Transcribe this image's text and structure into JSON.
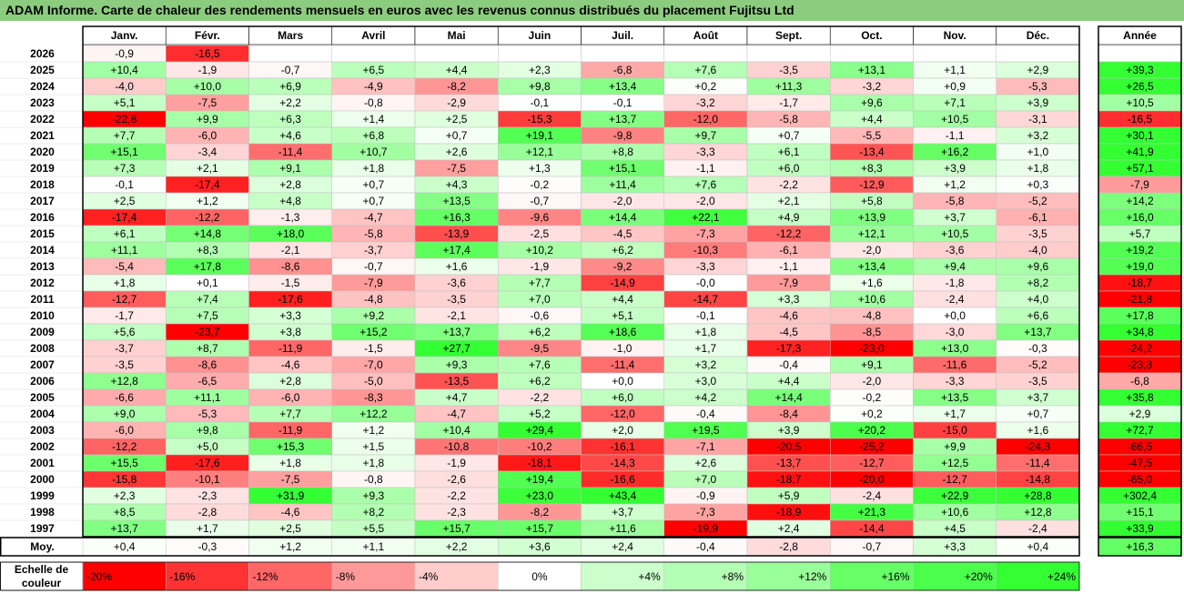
{
  "title": "ADAM Informe. Carte de chaleur des rendements mensuels en euros avec les revenus connus distribués du placement Fujitsu Ltd",
  "chart_data": {
    "type": "heatmap",
    "months": [
      "Janv.",
      "Févr.",
      "Mars",
      "Avril",
      "Mai",
      "Juin",
      "Juil.",
      "Août",
      "Sept.",
      "Oct.",
      "Nov.",
      "Déc."
    ],
    "annual_header": "Année",
    "rows": [
      {
        "year": "2026",
        "values": [
          -0.9,
          -16.5,
          null,
          null,
          null,
          null,
          null,
          null,
          null,
          null,
          null,
          null
        ],
        "labels": [
          "-0,9",
          "-16,5",
          "",
          "",
          "",
          "",
          "",
          "",
          "",
          "",
          "",
          ""
        ],
        "annual": null,
        "annual_label": ""
      },
      {
        "year": "2025",
        "values": [
          10.4,
          -1.9,
          -0.7,
          6.5,
          4.4,
          2.3,
          -6.8,
          7.6,
          -3.5,
          13.1,
          1.1,
          2.9
        ],
        "labels": [
          "+10,4",
          "-1,9",
          "-0,7",
          "+6,5",
          "+4,4",
          "+2,3",
          "-6,8",
          "+7,6",
          "-3,5",
          "+13,1",
          "+1,1",
          "+2,9"
        ],
        "annual": 39.3,
        "annual_label": "+39,3"
      },
      {
        "year": "2024",
        "values": [
          -4.0,
          10.0,
          6.9,
          -4.9,
          -8.2,
          9.8,
          13.4,
          0.2,
          11.3,
          -3.2,
          0.9,
          -5.3
        ],
        "labels": [
          "-4,0",
          "+10,0",
          "+6,9",
          "-4,9",
          "-8,2",
          "+9,8",
          "+13,4",
          "+0,2",
          "+11,3",
          "-3,2",
          "+0,9",
          "-5,3"
        ],
        "annual": 26.5,
        "annual_label": "+26,5"
      },
      {
        "year": "2023",
        "values": [
          5.1,
          -7.5,
          2.2,
          -0.8,
          -2.9,
          -0.1,
          -0.1,
          -3.2,
          -1.7,
          9.6,
          7.1,
          3.9
        ],
        "labels": [
          "+5,1",
          "-7,5",
          "+2,2",
          "-0,8",
          "-2,9",
          "-0,1",
          "-0,1",
          "-3,2",
          "-1,7",
          "+9,6",
          "+7,1",
          "+3,9"
        ],
        "annual": 10.5,
        "annual_label": "+10,5"
      },
      {
        "year": "2022",
        "values": [
          -22.8,
          9.9,
          6.3,
          1.4,
          2.5,
          -15.3,
          13.7,
          -12.0,
          -5.8,
          4.4,
          10.5,
          -3.1
        ],
        "labels": [
          "-22,8",
          "+9,9",
          "+6,3",
          "+1,4",
          "+2,5",
          "-15,3",
          "+13,7",
          "-12,0",
          "-5,8",
          "+4,4",
          "+10,5",
          "-3,1"
        ],
        "annual": -16.5,
        "annual_label": "-16,5"
      },
      {
        "year": "2021",
        "values": [
          7.7,
          -6.0,
          4.6,
          6.8,
          0.7,
          19.1,
          -9.8,
          9.7,
          0.7,
          -5.5,
          -1.1,
          3.2
        ],
        "labels": [
          "+7,7",
          "-6,0",
          "+4,6",
          "+6,8",
          "+0,7",
          "+19,1",
          "-9,8",
          "+9,7",
          "+0,7",
          "-5,5",
          "-1,1",
          "+3,2"
        ],
        "annual": 30.1,
        "annual_label": "+30,1"
      },
      {
        "year": "2020",
        "values": [
          15.1,
          -3.4,
          -11.4,
          10.7,
          2.6,
          12.1,
          8.8,
          -3.3,
          6.1,
          -13.4,
          16.2,
          1.0
        ],
        "labels": [
          "+15,1",
          "-3,4",
          "-11,4",
          "+10,7",
          "+2,6",
          "+12,1",
          "+8,8",
          "-3,3",
          "+6,1",
          "-13,4",
          "+16,2",
          "+1,0"
        ],
        "annual": 41.9,
        "annual_label": "+41,9"
      },
      {
        "year": "2019",
        "values": [
          7.3,
          2.1,
          9.1,
          1.8,
          -7.5,
          1.3,
          15.1,
          -1.1,
          6.0,
          8.3,
          3.9,
          1.8
        ],
        "labels": [
          "+7,3",
          "+2,1",
          "+9,1",
          "+1,8",
          "-7,5",
          "+1,3",
          "+15,1",
          "-1,1",
          "+6,0",
          "+8,3",
          "+3,9",
          "+1,8"
        ],
        "annual": 57.1,
        "annual_label": "+57,1"
      },
      {
        "year": "2018",
        "values": [
          -0.1,
          -17.4,
          2.8,
          0.7,
          4.3,
          -0.2,
          11.4,
          7.6,
          -2.2,
          -12.9,
          1.2,
          0.3
        ],
        "labels": [
          "-0,1",
          "-17,4",
          "+2,8",
          "+0,7",
          "+4,3",
          "-0,2",
          "+11,4",
          "+7,6",
          "-2,2",
          "-12,9",
          "+1,2",
          "+0,3"
        ],
        "annual": -7.9,
        "annual_label": "-7,9"
      },
      {
        "year": "2017",
        "values": [
          2.5,
          1.2,
          4.8,
          0.7,
          13.5,
          -0.7,
          -2.0,
          -2.0,
          2.1,
          5.8,
          -5.8,
          -5.2
        ],
        "labels": [
          "+2,5",
          "+1,2",
          "+4,8",
          "+0,7",
          "+13,5",
          "-0,7",
          "-2,0",
          "-2,0",
          "+2,1",
          "+5,8",
          "-5,8",
          "-5,2"
        ],
        "annual": 14.2,
        "annual_label": "+14,2"
      },
      {
        "year": "2016",
        "values": [
          -17.4,
          -12.2,
          -1.3,
          -4.7,
          16.3,
          -9.6,
          14.4,
          22.1,
          4.9,
          13.9,
          3.7,
          -6.1
        ],
        "labels": [
          "-17,4",
          "-12,2",
          "-1,3",
          "-4,7",
          "+16,3",
          "-9,6",
          "+14,4",
          "+22,1",
          "+4,9",
          "+13,9",
          "+3,7",
          "-6,1"
        ],
        "annual": 16.0,
        "annual_label": "+16,0"
      },
      {
        "year": "2015",
        "values": [
          6.1,
          14.8,
          18.0,
          -5.8,
          -13.9,
          -2.5,
          -4.5,
          -7.3,
          -12.2,
          12.1,
          10.5,
          -3.5
        ],
        "labels": [
          "+6,1",
          "+14,8",
          "+18,0",
          "-5,8",
          "-13,9",
          "-2,5",
          "-4,5",
          "-7,3",
          "-12,2",
          "+12,1",
          "+10,5",
          "-3,5"
        ],
        "annual": 5.7,
        "annual_label": "+5,7"
      },
      {
        "year": "2014",
        "values": [
          11.1,
          8.3,
          -2.1,
          -3.7,
          17.4,
          10.2,
          6.2,
          -10.3,
          -6.1,
          -2.0,
          -3.6,
          -4.0
        ],
        "labels": [
          "+11,1",
          "+8,3",
          "-2,1",
          "-3,7",
          "+17,4",
          "+10,2",
          "+6,2",
          "-10,3",
          "-6,1",
          "-2,0",
          "-3,6",
          "-4,0"
        ],
        "annual": 19.2,
        "annual_label": "+19,2"
      },
      {
        "year": "2013",
        "values": [
          -5.4,
          17.8,
          -8.6,
          -0.7,
          1.6,
          -1.9,
          -9.2,
          -3.3,
          -1.1,
          13.4,
          9.4,
          9.6
        ],
        "labels": [
          "-5,4",
          "+17,8",
          "-8,6",
          "-0,7",
          "+1,6",
          "-1,9",
          "-9,2",
          "-3,3",
          "-1,1",
          "+13,4",
          "+9,4",
          "+9,6"
        ],
        "annual": 19.0,
        "annual_label": "+19,0"
      },
      {
        "year": "2012",
        "values": [
          1.8,
          0.1,
          -1.5,
          -7.9,
          -3.6,
          7.7,
          -14.9,
          -0.0,
          -7.9,
          1.6,
          -1.8,
          8.2
        ],
        "labels": [
          "+1,8",
          "+0,1",
          "-1,5",
          "-7,9",
          "-3,6",
          "+7,7",
          "-14,9",
          "-0,0",
          "-7,9",
          "+1,6",
          "-1,8",
          "+8,2"
        ],
        "annual": -18.7,
        "annual_label": "-18,7"
      },
      {
        "year": "2011",
        "values": [
          -12.7,
          7.4,
          -17.6,
          -4.8,
          -3.5,
          7.0,
          4.4,
          -14.7,
          3.3,
          10.6,
          -2.4,
          4.0
        ],
        "labels": [
          "-12,7",
          "+7,4",
          "-17,6",
          "-4,8",
          "-3,5",
          "+7,0",
          "+4,4",
          "-14,7",
          "+3,3",
          "+10,6",
          "-2,4",
          "+4,0"
        ],
        "annual": -21.8,
        "annual_label": "-21,8"
      },
      {
        "year": "2010",
        "values": [
          -1.7,
          7.5,
          3.3,
          9.2,
          -2.1,
          -0.6,
          5.1,
          -0.1,
          -4.6,
          -4.8,
          0.0,
          6.6
        ],
        "labels": [
          "-1,7",
          "+7,5",
          "+3,3",
          "+9,2",
          "-2,1",
          "-0,6",
          "+5,1",
          "-0,1",
          "-4,6",
          "-4,8",
          "+0,0",
          "+6,6"
        ],
        "annual": 17.8,
        "annual_label": "+17,8"
      },
      {
        "year": "2009",
        "values": [
          5.6,
          -23.7,
          3.8,
          15.2,
          13.7,
          6.2,
          18.6,
          1.8,
          -4.5,
          -8.5,
          -3.0,
          13.7
        ],
        "labels": [
          "+5,6",
          "-23,7",
          "+3,8",
          "+15,2",
          "+13,7",
          "+6,2",
          "+18,6",
          "+1,8",
          "-4,5",
          "-8,5",
          "-3,0",
          "+13,7"
        ],
        "annual": 34.8,
        "annual_label": "+34,8"
      },
      {
        "year": "2008",
        "values": [
          -3.7,
          8.7,
          -11.9,
          -1.5,
          27.7,
          -9.5,
          -1.0,
          1.7,
          -17.3,
          -23.0,
          13.0,
          -0.3
        ],
        "labels": [
          "-3,7",
          "+8,7",
          "-11,9",
          "-1,5",
          "+27,7",
          "-9,5",
          "-1,0",
          "+1,7",
          "-17,3",
          "-23,0",
          "+13,0",
          "-0,3"
        ],
        "annual": -24.2,
        "annual_label": "-24,2"
      },
      {
        "year": "2007",
        "values": [
          -3.5,
          -8.6,
          -4.6,
          -7.0,
          9.3,
          7.6,
          -11.4,
          3.2,
          -0.4,
          9.1,
          -11.6,
          -5.2
        ],
        "labels": [
          "-3,5",
          "-8,6",
          "-4,6",
          "-7,0",
          "+9,3",
          "+7,6",
          "-11,4",
          "+3,2",
          "-0,4",
          "+9,1",
          "-11,6",
          "-5,2"
        ],
        "annual": -23.3,
        "annual_label": "-23,3"
      },
      {
        "year": "2006",
        "values": [
          12.8,
          -6.5,
          2.8,
          -5.0,
          -13.5,
          6.2,
          0.0,
          3.0,
          4.4,
          -2.0,
          -3.3,
          -3.5
        ],
        "labels": [
          "+12,8",
          "-6,5",
          "+2,8",
          "-5,0",
          "-13,5",
          "+6,2",
          "+0,0",
          "+3,0",
          "+4,4",
          "-2,0",
          "-3,3",
          "-3,5"
        ],
        "annual": -6.8,
        "annual_label": "-6,8"
      },
      {
        "year": "2005",
        "values": [
          -6.6,
          11.1,
          -6.0,
          -8.3,
          4.7,
          -2.2,
          6.0,
          4.2,
          14.4,
          -0.2,
          13.5,
          3.7
        ],
        "labels": [
          "-6,6",
          "+11,1",
          "-6,0",
          "-8,3",
          "+4,7",
          "-2,2",
          "+6,0",
          "+4,2",
          "+14,4",
          "-0,2",
          "+13,5",
          "+3,7"
        ],
        "annual": 35.8,
        "annual_label": "+35,8"
      },
      {
        "year": "2004",
        "values": [
          9.0,
          -5.3,
          7.7,
          12.2,
          -4.7,
          5.2,
          -12.0,
          -0.4,
          -8.4,
          0.2,
          1.7,
          0.7
        ],
        "labels": [
          "+9,0",
          "-5,3",
          "+7,7",
          "+12,2",
          "-4,7",
          "+5,2",
          "-12,0",
          "-0,4",
          "-8,4",
          "+0,2",
          "+1,7",
          "+0,7"
        ],
        "annual": 2.9,
        "annual_label": "+2,9"
      },
      {
        "year": "2003",
        "values": [
          -6.0,
          9.8,
          -11.9,
          1.2,
          10.4,
          29.4,
          2.0,
          19.5,
          3.9,
          20.2,
          -15.0,
          1.6
        ],
        "labels": [
          "-6,0",
          "+9,8",
          "-11,9",
          "+1,2",
          "+10,4",
          "+29,4",
          "+2,0",
          "+19,5",
          "+3,9",
          "+20,2",
          "-15,0",
          "+1,6"
        ],
        "annual": 72.7,
        "annual_label": "+72,7"
      },
      {
        "year": "2002",
        "values": [
          -12.2,
          5.0,
          15.3,
          1.5,
          -10.8,
          -10.2,
          -16.1,
          -7.1,
          -20.5,
          -25.2,
          9.9,
          -24.3
        ],
        "labels": [
          "-12,2",
          "+5,0",
          "+15,3",
          "+1,5",
          "-10,8",
          "-10,2",
          "-16,1",
          "-7,1",
          "-20,5",
          "-25,2",
          "+9,9",
          "-24,3"
        ],
        "annual": -66.5,
        "annual_label": "-66,5"
      },
      {
        "year": "2001",
        "values": [
          15.5,
          -17.6,
          1.8,
          1.8,
          -1.9,
          -18.1,
          -14.3,
          2.6,
          -13.7,
          -12.7,
          12.5,
          -11.4
        ],
        "labels": [
          "+15,5",
          "-17,6",
          "+1,8",
          "+1,8",
          "-1,9",
          "-18,1",
          "-14,3",
          "+2,6",
          "-13,7",
          "-12,7",
          "+12,5",
          "-11,4"
        ],
        "annual": -47.5,
        "annual_label": "-47,5"
      },
      {
        "year": "2000",
        "values": [
          -15.8,
          -10.1,
          -7.5,
          -0.8,
          -2.6,
          19.4,
          -16.6,
          7.0,
          -18.7,
          -20.0,
          -12.7,
          -14.8
        ],
        "labels": [
          "-15,8",
          "-10,1",
          "-7,5",
          "-0,8",
          "-2,6",
          "+19,4",
          "-16,6",
          "+7,0",
          "-18,7",
          "-20,0",
          "-12,7",
          "-14,8"
        ],
        "annual": -65.0,
        "annual_label": "-65,0"
      },
      {
        "year": "1999",
        "values": [
          2.3,
          -2.3,
          31.9,
          9.3,
          -2.2,
          23.0,
          43.4,
          -0.9,
          5.9,
          -2.4,
          22.9,
          28.8
        ],
        "labels": [
          "+2,3",
          "-2,3",
          "+31,9",
          "+9,3",
          "-2,2",
          "+23,0",
          "+43,4",
          "-0,9",
          "+5,9",
          "-2,4",
          "+22,9",
          "+28,8"
        ],
        "annual": 302.4,
        "annual_label": "+302,4"
      },
      {
        "year": "1998",
        "values": [
          8.5,
          -2.8,
          -4.6,
          8.2,
          -2.3,
          -8.2,
          3.7,
          -7.3,
          -18.9,
          21.3,
          10.6,
          12.8
        ],
        "labels": [
          "+8,5",
          "-2,8",
          "-4,6",
          "+8,2",
          "-2,3",
          "-8,2",
          "+3,7",
          "-7,3",
          "-18,9",
          "+21,3",
          "+10,6",
          "+12,8"
        ],
        "annual": 15.1,
        "annual_label": "+15,1"
      },
      {
        "year": "1997",
        "values": [
          13.7,
          1.7,
          2.5,
          5.5,
          15.7,
          15.7,
          11.6,
          -19.9,
          2.4,
          -14.4,
          4.5,
          -2.4
        ],
        "labels": [
          "+13,7",
          "+1,7",
          "+2,5",
          "+5,5",
          "+15,7",
          "+15,7",
          "+11,6",
          "-19,9",
          "+2,4",
          "-14,4",
          "+4,5",
          "-2,4"
        ],
        "annual": 33.9,
        "annual_label": "+33,9"
      }
    ],
    "average": {
      "label": "Moy.",
      "values": [
        0.4,
        -0.3,
        1.2,
        1.1,
        2.2,
        3.6,
        2.4,
        -0.4,
        -2.8,
        -0.7,
        3.3,
        0.4
      ],
      "labels": [
        "+0,4",
        "-0,3",
        "+1,2",
        "+1,1",
        "+2,2",
        "+3,6",
        "+2,4",
        "-0,4",
        "-2,8",
        "-0,7",
        "+3,3",
        "+0,4"
      ],
      "annual": 16.3,
      "annual_label": "+16,3"
    },
    "color_scale": {
      "label_line1": "Echelle de",
      "label_line2": "couleur",
      "stops": [
        -20,
        -16,
        -12,
        -8,
        -4,
        0,
        4,
        8,
        12,
        16,
        20,
        24
      ],
      "stop_labels": [
        "-20%",
        "-16%",
        "-12%",
        "-8%",
        "-4%",
        "0%",
        "+4%",
        "+8%",
        "+12%",
        "+16%",
        "+20%",
        "+24%"
      ],
      "colors": [
        "#ff0000",
        "#ff3333",
        "#ff6666",
        "#ff9999",
        "#ffcccc",
        "#ffffff",
        "#ccffcc",
        "#b3ffb3",
        "#99ff99",
        "#66ff66",
        "#4dff4d",
        "#33ff33"
      ]
    }
  }
}
